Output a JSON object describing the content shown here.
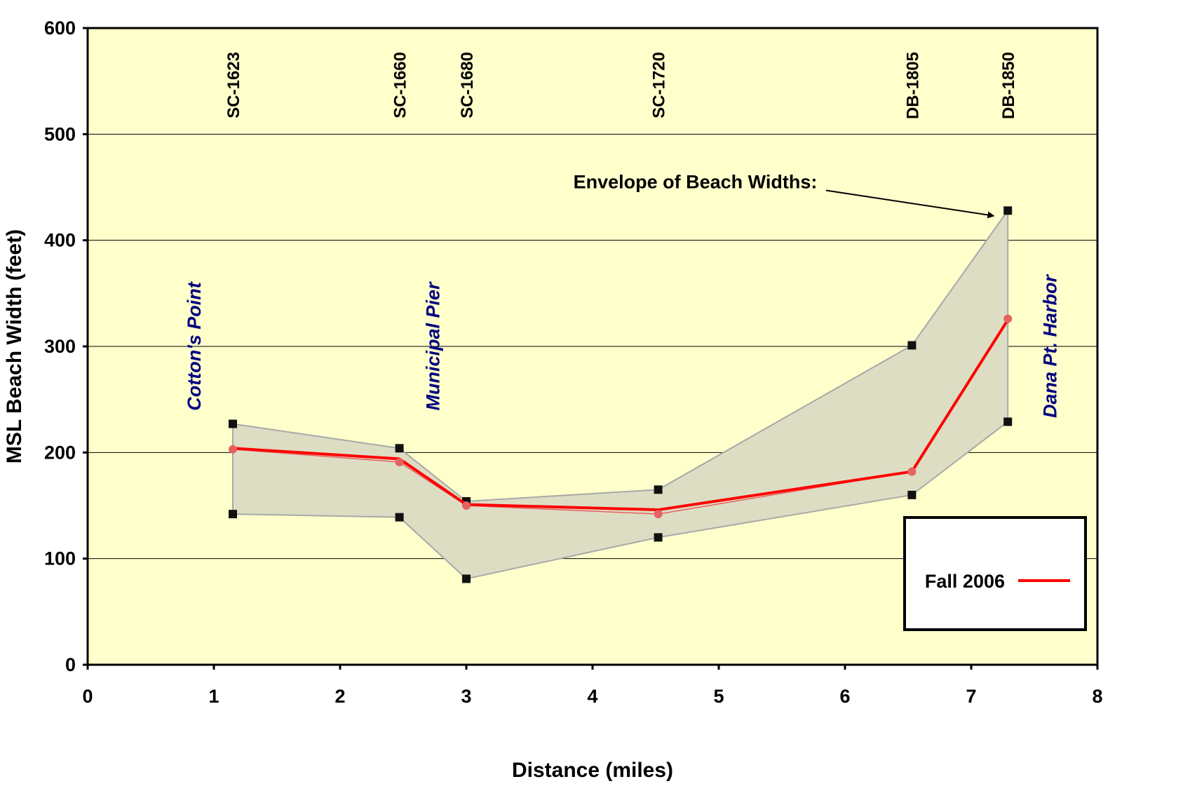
{
  "chart_data": {
    "type": "line",
    "xlabel": "Distance (miles)",
    "ylabel": "MSL Beach Width (feet)",
    "xlim": [
      0,
      8
    ],
    "ylim": [
      0,
      600
    ],
    "x_ticks": [
      0,
      1,
      2,
      3,
      4,
      5,
      6,
      7,
      8
    ],
    "y_ticks": [
      0,
      100,
      200,
      300,
      400,
      500,
      600
    ],
    "grid": "horizontal",
    "legend_position": "bottom-right",
    "colors": {
      "plot_background": "#FFFFCC",
      "envelope_fill": "#DDDDC4",
      "envelope_stroke": "#A8A8A8",
      "series_line": "#FF0000",
      "series_marker": "#E86060",
      "landmark_text": "#000080",
      "gridline": "#000000"
    },
    "profiles": [
      {
        "label": "SC-1623",
        "x": 1.15
      },
      {
        "label": "SC-1660",
        "x": 2.47
      },
      {
        "label": "SC-1680",
        "x": 3.0
      },
      {
        "label": "SC-1720",
        "x": 4.52
      },
      {
        "label": "DB-1805",
        "x": 6.53
      },
      {
        "label": "DB-1850",
        "x": 7.29
      }
    ],
    "landmarks": [
      {
        "label": "Cotton's Point",
        "x": 0.84,
        "y": 300
      },
      {
        "label": "Municipal Pier",
        "x": 2.73,
        "y": 300
      },
      {
        "label": "Dana Pt. Harbor",
        "x": 7.62,
        "y": 300
      }
    ],
    "envelope": {
      "x": [
        1.15,
        2.47,
        3.0,
        4.52,
        6.53,
        7.29
      ],
      "max": [
        227,
        204,
        154,
        165,
        301,
        428
      ],
      "min": [
        142,
        139,
        81,
        120,
        160,
        229
      ]
    },
    "annotation": {
      "text": "Envelope of Beach Widths:",
      "text_x": 5.78,
      "text_y": 449,
      "arrow_from": [
        5.85,
        447
      ],
      "arrow_to": [
        7.18,
        423
      ]
    },
    "series": [
      {
        "name": "Fall 2006",
        "x": [
          1.15,
          2.47,
          3.0,
          4.52,
          6.53,
          7.29
        ],
        "y": [
          203,
          191,
          150,
          142,
          182,
          326
        ],
        "smoothed": [
          204,
          194,
          151,
          146,
          182,
          325
        ]
      }
    ]
  }
}
